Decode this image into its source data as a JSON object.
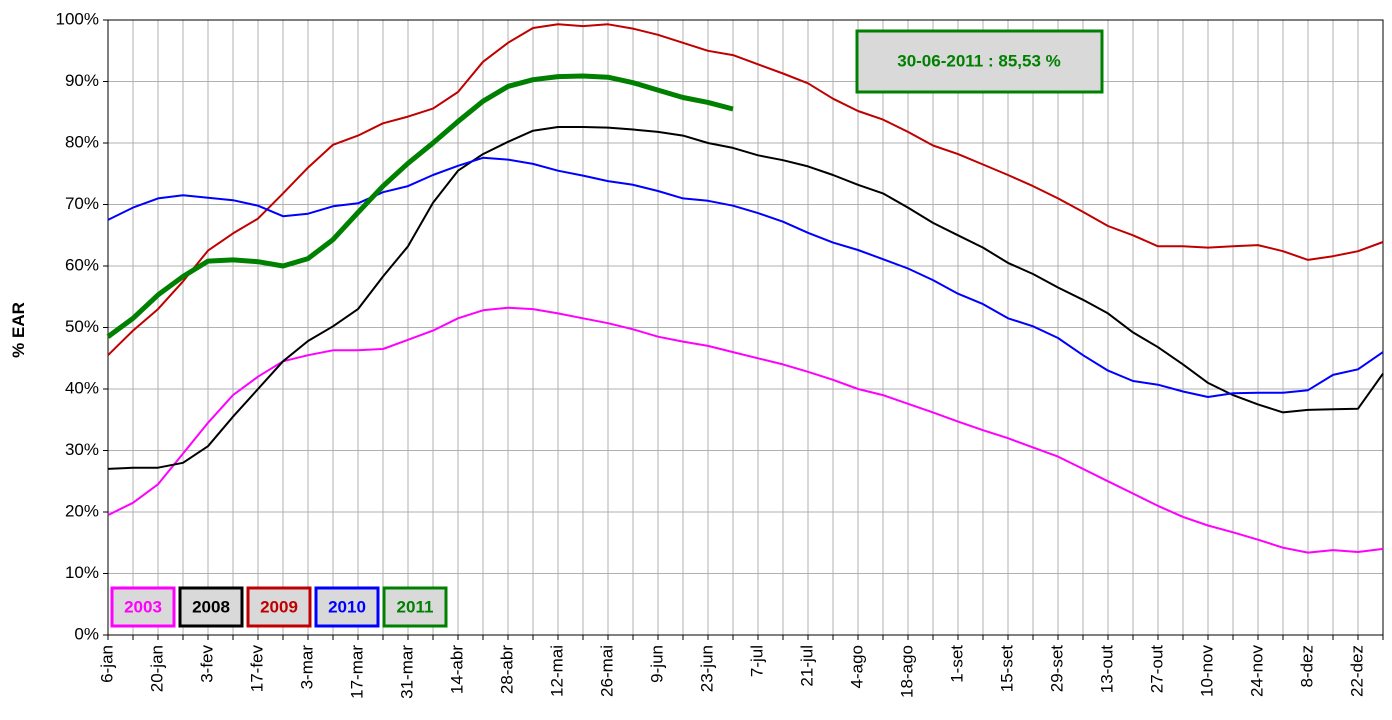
{
  "chart_data": {
    "type": "line",
    "y_label": "% EAR",
    "annotation": "30-06-2011 : 85,53 %",
    "annotation_color": "#008000",
    "categories": [
      "6-jan",
      null,
      "20-jan",
      null,
      "3-fev",
      null,
      "17-fev",
      null,
      "3-mar",
      null,
      "17-mar",
      null,
      "31-mar",
      null,
      "14-abr",
      null,
      "28-abr",
      null,
      "12-mai",
      null,
      "26-mai",
      null,
      "9-jun",
      null,
      "23-jun",
      null,
      "7-jul",
      null,
      "21-jul",
      null,
      "4-ago",
      null,
      "18-ago",
      null,
      "1-set",
      null,
      "15-set",
      null,
      "29-set",
      null,
      "13-out",
      null,
      "27-out",
      null,
      "10-nov",
      null,
      "24-nov",
      null,
      "8-dez",
      null,
      "22-dez",
      null
    ],
    "ylim": [
      0,
      100
    ],
    "yticks": [
      {
        "value": 0,
        "label": "0%"
      },
      {
        "value": 10,
        "label": "10%"
      },
      {
        "value": 20,
        "label": "20%"
      },
      {
        "value": 30,
        "label": "30%"
      },
      {
        "value": 40,
        "label": "40%"
      },
      {
        "value": 50,
        "label": "50%"
      },
      {
        "value": 60,
        "label": "60%"
      },
      {
        "value": 70,
        "label": "70%"
      },
      {
        "value": 80,
        "label": "80%"
      },
      {
        "value": 90,
        "label": "90%"
      },
      {
        "value": 100,
        "label": "100%"
      }
    ],
    "grid": true,
    "legend": "bottom-left",
    "series": [
      {
        "name": "2003",
        "color": "#ff00ff",
        "width": 2,
        "values": [
          19.5,
          21.5,
          24.5,
          29.5,
          34.5,
          39,
          42,
          44.5,
          45.5,
          46.3,
          46.3,
          46.5,
          48,
          49.5,
          51.5,
          52.8,
          53.2,
          53,
          52.3,
          51.5,
          50.7,
          49.7,
          48.5,
          47.7,
          47,
          46,
          45,
          44,
          42.8,
          41.5,
          40,
          39,
          37.6,
          36.2,
          34.7,
          33.3,
          32,
          30.5,
          29,
          27,
          25,
          23,
          21,
          19.2,
          17.8,
          16.7,
          15.5,
          14.2,
          13.4,
          13.8,
          13.5,
          14
        ]
      },
      {
        "name": "2008",
        "color": "#000000",
        "width": 2,
        "values": [
          27,
          27.2,
          27.2,
          28,
          30.7,
          35.5,
          40,
          44.5,
          47.8,
          50.2,
          53,
          58.3,
          63.2,
          70.3,
          75.5,
          78.2,
          80.2,
          82,
          82.6,
          82.6,
          82.5,
          82.2,
          81.8,
          81.2,
          80,
          79.2,
          78,
          77.2,
          76.2,
          74.8,
          73.2,
          71.8,
          69.5,
          67,
          65,
          63,
          60.5,
          58.7,
          56.5,
          54.5,
          52.3,
          49.2,
          46.8,
          44,
          41,
          39,
          37.5,
          36.2,
          36.6,
          36.7,
          36.8,
          42.5
        ]
      },
      {
        "name": "2009",
        "color": "#c00000",
        "width": 2,
        "values": [
          45.5,
          49.5,
          53,
          57.5,
          62.5,
          65.3,
          67.7,
          71.8,
          76,
          79.7,
          81.2,
          83.2,
          84.3,
          85.6,
          88.3,
          93.2,
          96.3,
          98.7,
          99.3,
          99,
          99.3,
          98.6,
          97.6,
          96.3,
          95,
          94.3,
          92.8,
          91.3,
          89.7,
          87.2,
          85.2,
          83.8,
          81.8,
          79.6,
          78.2,
          76.5,
          74.8,
          73,
          71,
          68.8,
          66.5,
          65,
          63.2,
          63.2,
          63,
          63.2,
          63.4,
          62.4,
          61,
          61.6,
          62.4,
          63.9
        ]
      },
      {
        "name": "2010",
        "color": "#0000ff",
        "width": 2,
        "values": [
          67.5,
          69.5,
          71,
          71.5,
          71.1,
          70.7,
          69.8,
          68.1,
          68.5,
          69.7,
          70.2,
          72,
          73,
          74.8,
          76.3,
          77.6,
          77.3,
          76.6,
          75.5,
          74.7,
          73.8,
          73.2,
          72.2,
          71,
          70.6,
          69.8,
          68.6,
          67.2,
          65.4,
          63.8,
          62.6,
          61.1,
          59.6,
          57.7,
          55.5,
          53.8,
          51.5,
          50.2,
          48.3,
          45.5,
          43,
          41.3,
          40.7,
          39.6,
          38.7,
          39.3,
          39.4,
          39.4,
          39.8,
          42.3,
          43.2,
          46
        ]
      },
      {
        "name": "2011",
        "color": "#008000",
        "width": 5,
        "values": [
          48.5,
          51.5,
          55.3,
          58.3,
          60.8,
          61,
          60.7,
          60,
          61.2,
          64.3,
          68.7,
          73,
          76.7,
          80,
          83.5,
          86.8,
          89.2,
          90.3,
          90.8,
          90.9,
          90.7,
          89.8,
          88.6,
          87.4,
          86.6,
          85.53,
          null,
          null,
          null,
          null,
          null,
          null,
          null,
          null,
          null,
          null,
          null,
          null,
          null,
          null,
          null,
          null,
          null,
          null,
          null,
          null,
          null,
          null,
          null,
          null,
          null,
          null
        ]
      }
    ]
  }
}
